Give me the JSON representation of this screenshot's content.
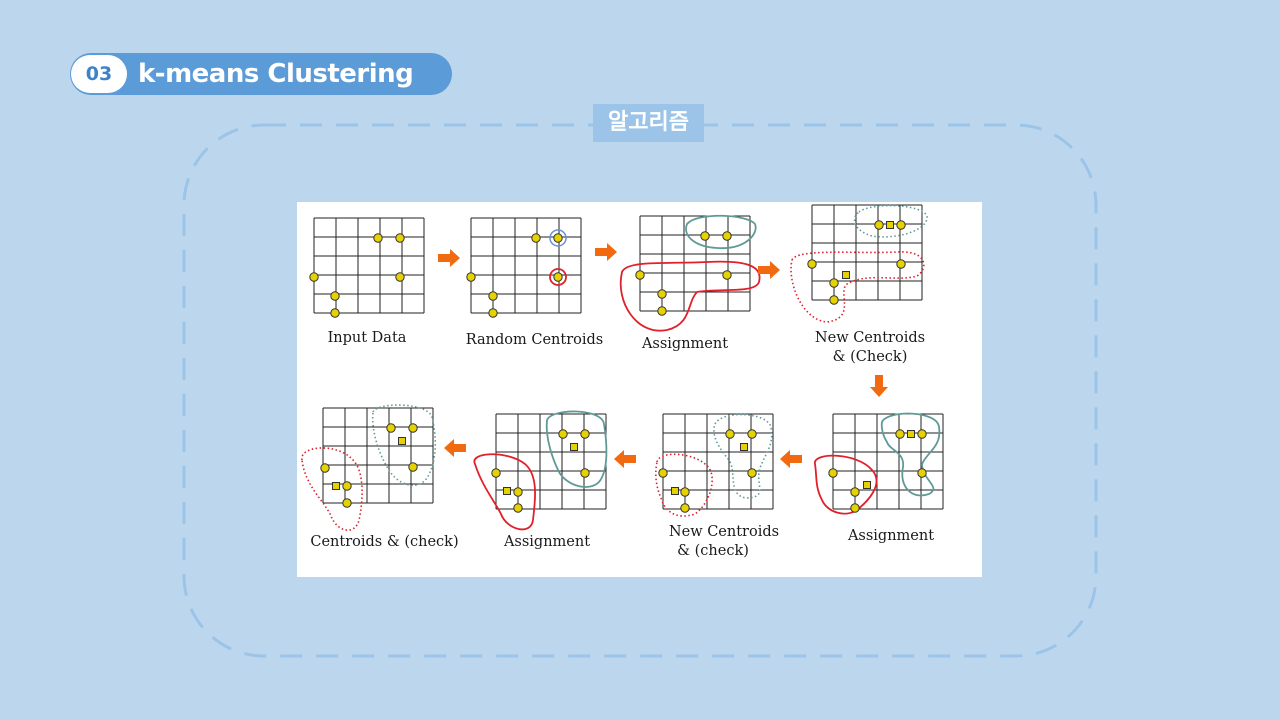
{
  "header": {
    "number": "03",
    "title": "k-means Clustering"
  },
  "section": {
    "label": "알고리즘"
  },
  "figure": {
    "captions": {
      "input_data": "Input Data",
      "random_centroids": "Random Centroids",
      "assignment_1": "Assignment",
      "new_centroids_1_line1": "New Centroids",
      "new_centroids_1_line2": "& (Check)",
      "assignment_2": "Assignment",
      "new_centroids_2_line1": "New Centroids",
      "new_centroids_2_line2": "& (check)",
      "assignment_3": "Assignment",
      "centroids_check": "Centroids & (check)"
    }
  },
  "colors": {
    "background": "#bcd7ed",
    "header_pill": "#5b9bd7",
    "frame_dash": "#9cc4e8",
    "arrow": "#f26a10",
    "point": "#e6d200",
    "cluster_red": "#e0202a",
    "cluster_teal": "#5f9a98"
  }
}
